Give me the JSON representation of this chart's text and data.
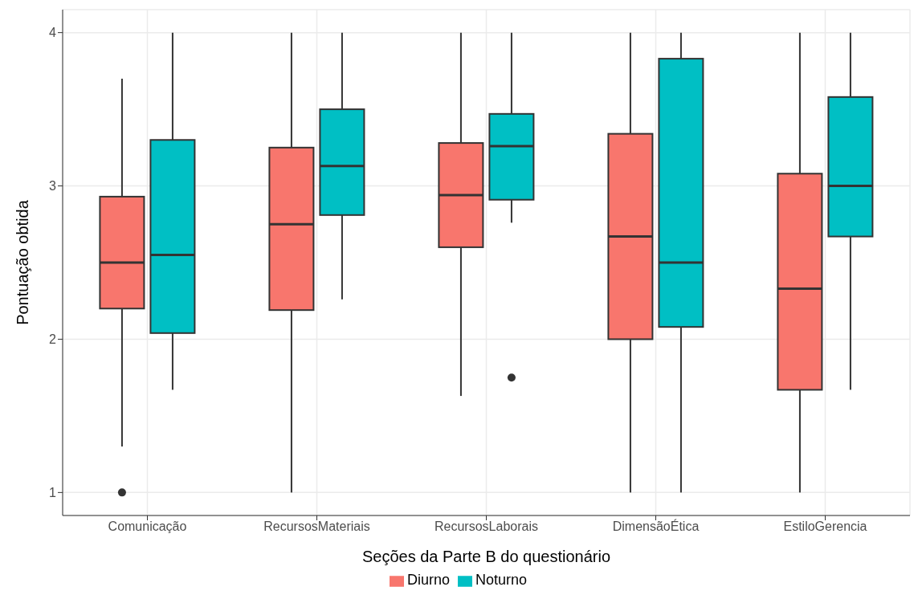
{
  "chart_data": {
    "type": "box",
    "xlabel": "Seções da Parte B do questionário",
    "ylabel": "Pontuação obtida",
    "categories": [
      "Comunicação",
      "RecursosMateriais",
      "RecursosLaborais",
      "DimensãoÉtica",
      "EstiloGerencia"
    ],
    "ylim": [
      0.85,
      4.15
    ],
    "yticks": [
      1,
      2,
      3,
      4
    ],
    "grid": true,
    "legend": "bottom",
    "series": [
      {
        "name": "Diurno",
        "color": "#f8766d",
        "boxes": [
          {
            "low": 1.3,
            "q1": 2.2,
            "median": 2.5,
            "q3": 2.93,
            "high": 3.7,
            "outliers": [
              1
            ]
          },
          {
            "low": 1,
            "q1": 2.19,
            "median": 2.75,
            "q3": 3.25,
            "high": 4
          },
          {
            "low": 1.63,
            "q1": 2.6,
            "median": 2.94,
            "q3": 3.28,
            "high": 4
          },
          {
            "low": 1,
            "q1": 2,
            "median": 2.67,
            "q3": 3.34,
            "high": 4
          },
          {
            "low": 1,
            "q1": 1.67,
            "median": 2.33,
            "q3": 3.08,
            "high": 4
          }
        ]
      },
      {
        "name": "Noturno",
        "color": "#00bfc4",
        "boxes": [
          {
            "low": 1.67,
            "q1": 2.04,
            "median": 2.55,
            "q3": 3.3,
            "high": 4
          },
          {
            "low": 2.26,
            "q1": 2.81,
            "median": 3.13,
            "q3": 3.5,
            "high": 4
          },
          {
            "low": 2.76,
            "q1": 2.91,
            "median": 3.26,
            "q3": 3.47,
            "high": 4,
            "outliers": [
              1.75
            ]
          },
          {
            "low": 1,
            "q1": 2.08,
            "median": 2.5,
            "q3": 3.83,
            "high": 4
          },
          {
            "low": 1.67,
            "q1": 2.67,
            "median": 3,
            "q3": 3.58,
            "high": 4
          }
        ]
      }
    ]
  }
}
